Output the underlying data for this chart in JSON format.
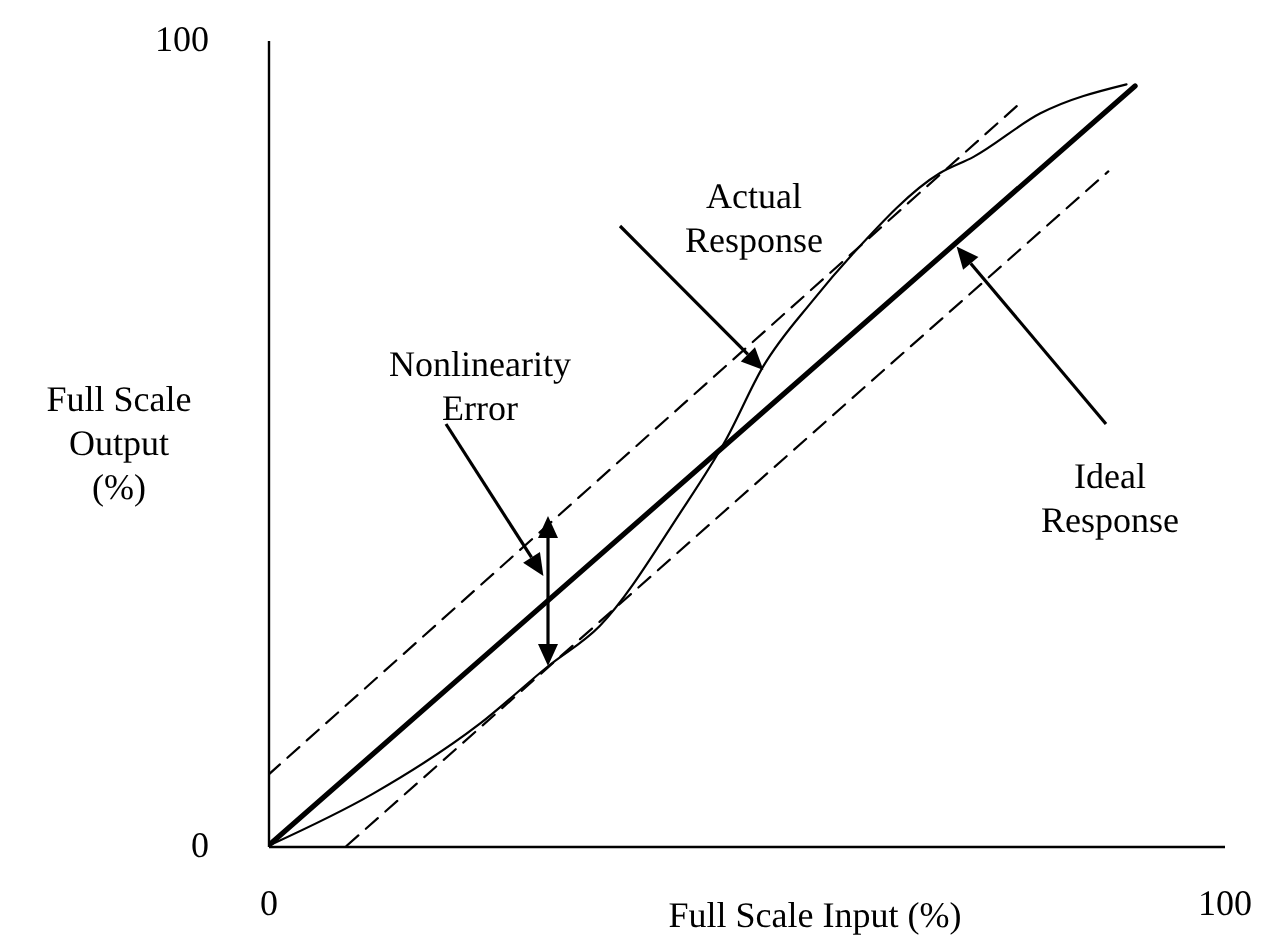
{
  "chart_data": {
    "type": "line",
    "xlabel": "Full Scale Input (%)",
    "ylabel": "Full Scale\nOutput\n(%)",
    "xlim": [
      0,
      100
    ],
    "ylim": [
      0,
      100
    ],
    "xticks": [
      0,
      100
    ],
    "yticks": [
      0,
      100
    ],
    "marker": "none",
    "series": [
      {
        "color": "#000000",
        "line_style": "solid",
        "x": [
          0,
          90.7
        ],
        "values": [
          0,
          94.3
        ]
      },
      {
        "color": "#000000",
        "line_style": "solid",
        "x": [
          0,
          11,
          22.2,
          29.3,
          34.7,
          43.1,
          47.9,
          51.8,
          57,
          61.2,
          70.3,
          73.8,
          80.8,
          89.8
        ],
        "values": [
          0,
          6.5,
          15.2,
          22.3,
          27.3,
          41.3,
          50.4,
          59.5,
          67.7,
          73.5,
          83.5,
          85.5,
          90.9,
          94.5
        ]
      },
      {
        "color": "#000000",
        "line_style": "dashed",
        "x": [
          0,
          78.8
        ],
        "values": [
          8.8,
          92.3
        ]
      },
      {
        "color": "#000000",
        "line_style": "dashed",
        "x": [
          8.2,
          87.9
        ],
        "values": [
          0,
          83.7
        ]
      }
    ],
    "annotations": [
      "Actual\nResponse",
      "Nonlinearity\nError",
      "Ideal\nResponse"
    ]
  }
}
